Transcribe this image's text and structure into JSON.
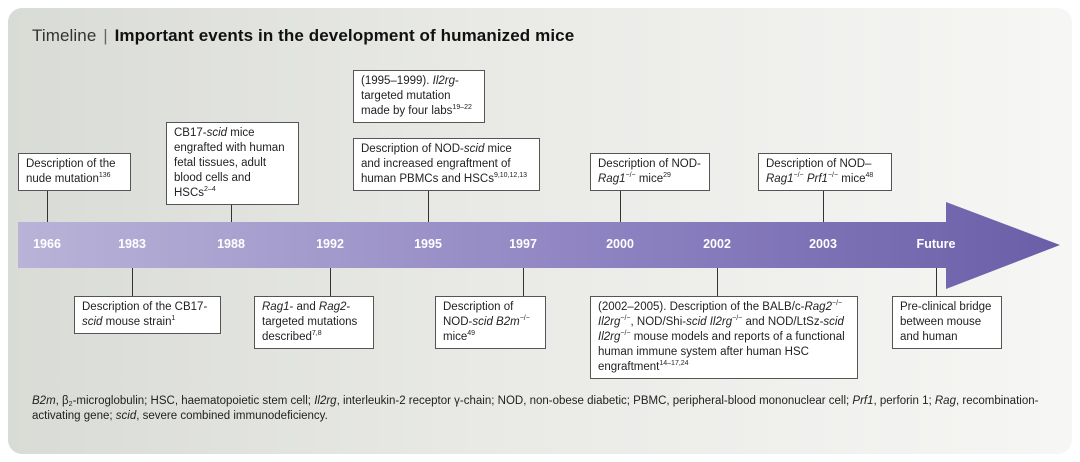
{
  "title": {
    "prefix": "Timeline",
    "separator": "|",
    "main": "Important events in the development of humanized mice"
  },
  "colors": {
    "arrow_start": "#b9b3d8",
    "arrow_mid": "#8f84c2",
    "arrow_end": "#6a5ea8",
    "panel_bg": "#e6e7e3"
  },
  "timeline": {
    "years": [
      "1966",
      "1983",
      "1988",
      "1992",
      "1995",
      "1997",
      "2000",
      "2002",
      "2003",
      "Future"
    ]
  },
  "events_above": [
    {
      "year": "1966",
      "text": "Description of the nude mutation",
      "ref": "136"
    },
    {
      "year": "1988",
      "lines": [
        "CB17-scid mice engrafted with human fetal tissues, adult blood cells and HSCs"
      ],
      "ref": "2–4"
    },
    {
      "year": "1995",
      "text": "Description of NOD-scid mice and increased engraftment of human PBMCs and HSCs",
      "ref": "9,10,12,13"
    },
    {
      "year": "1995",
      "text": "(1995–1999). Il2rg-targeted mutation made by four labs",
      "ref": "19–22"
    },
    {
      "year": "2000",
      "text": "Description of NOD-Rag1−/− mice",
      "ref": "29"
    },
    {
      "year": "2003",
      "text": "Description of NOD–Rag1−/− Prf1−/− mice",
      "ref": "48"
    }
  ],
  "events_below": [
    {
      "year": "1983",
      "text": "Description of the CB17-scid mouse strain",
      "ref": "1"
    },
    {
      "year": "1992",
      "text": "Rag1- and Rag2-targeted mutations described",
      "ref": "7,8"
    },
    {
      "year": "1997",
      "text": "Description of NOD-scid B2m−/− mice",
      "ref": "49"
    },
    {
      "year": "2002",
      "text": "(2002–2005). Description of the BALB/c-Rag2−/− Il2rg−/−, NOD/Shi-scid Il2rg−/− and NOD/LtSz-scid Il2rg−/− mouse models and reports of a functional human immune system after human HSC engraftment",
      "ref": "14–17,24"
    },
    {
      "year": "Future",
      "text": "Pre-clinical bridge between mouse and human"
    }
  ],
  "text": {
    "e1966": "Description of the nude mutation",
    "e1966_ref": "136",
    "e1988_a": "CB17-",
    "e1988_scid": "scid",
    "e1988_b": " mice engrafted with human fetal tissues, adult blood cells and HSCs",
    "e1988_ref": "2–4",
    "e1995a_a": "Description of NOD-",
    "e1995a_scid": "scid",
    "e1995a_b": " mice and increased engraftment of human PBMCs and HSCs",
    "e1995a_ref": "9,10,12,13",
    "e1995b_a": "(1995–1999). ",
    "e1995b_gene": "Il2rg",
    "e1995b_b": "-targeted mutation made by four labs",
    "e1995b_ref": "19–22",
    "e2000_a": "Description of NOD-",
    "e2000_gene": "Rag1",
    "e2000_sup": "−/−",
    "e2000_b": " mice",
    "e2000_ref": "29",
    "e2003_a": "Description of NOD–",
    "e2003_gene1": "Rag1",
    "e2003_sup1": "−/−",
    "e2003_gene2": "Prf1",
    "e2003_sup2": "−/−",
    "e2003_b": " mice",
    "e2003_ref": "48",
    "e1983_a": "Description of the CB17-",
    "e1983_scid": "scid",
    "e1983_b": " mouse strain",
    "e1983_ref": "1",
    "e1992_gene1": "Rag1",
    "e1992_a": "- and ",
    "e1992_gene2": "Rag2",
    "e1992_b": "-targeted mutations described",
    "e1992_ref": "7,8",
    "e1997_a": "Description of NOD-",
    "e1997_scid": "scid B2m",
    "e1997_sup": "−/−",
    "e1997_b": " mice",
    "e1997_ref": "49",
    "e2002_a": "(2002–2005). Description of the BALB/c-",
    "e2002_g1": "Rag2",
    "e2002_s1": "−/−",
    "e2002_g2": "Il2rg",
    "e2002_s2": "−/−",
    "e2002_b": ", NOD/Shi-",
    "e2002_g3": "scid Il2rg",
    "e2002_s3": "−/−",
    "e2002_c": " and NOD/LtSz-",
    "e2002_g4": "scid Il2rg",
    "e2002_s4": "−/−",
    "e2002_d": " mouse models and reports of a functional human immune system after human HSC engraftment",
    "e2002_ref": "14–17,24",
    "future": "Pre-clinical bridge between mouse and human"
  },
  "footnote": {
    "b2m": "B2m",
    "b2m_def_a": ", β",
    "b2m_sub": "2",
    "b2m_def_b": "-microglobulin; HSC, haematopoietic stem cell; ",
    "il2rg": "Il2rg",
    "il2rg_def": ", interleukin-2 receptor γ-chain; NOD, non-obese diabetic; PBMC, peripheral-blood mononuclear cell; ",
    "prf1": "Prf1",
    "prf1_def": ", perforin 1; ",
    "rag": "Rag",
    "rag_def": ", recombination-activating gene; ",
    "scid": "scid",
    "scid_def": ", severe combined immunodeficiency."
  }
}
